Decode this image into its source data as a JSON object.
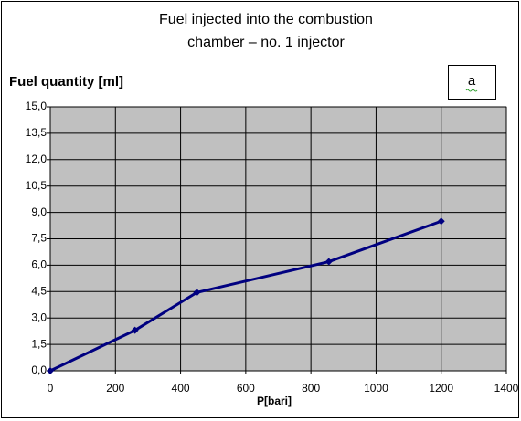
{
  "chart_data": {
    "type": "line",
    "title": [
      "Fuel injected into the combustion",
      "chamber – no. 1 injector"
    ],
    "y_label": "Fuel quantity [ml]",
    "x_label": "P[bari]",
    "annotation": "a",
    "x": [
      0,
      260,
      450,
      855,
      1200
    ],
    "series": [
      {
        "color": "#000080",
        "values": [
          0,
          2.3,
          4.45,
          6.2,
          8.5
        ]
      }
    ],
    "xlim": [
      0,
      1400
    ],
    "xticks": [
      0,
      200,
      400,
      600,
      800,
      1000,
      1200,
      1400
    ],
    "ylim": [
      0,
      15
    ],
    "yticks": [
      {
        "value": 0,
        "label": "0,0"
      },
      {
        "value": 1.5,
        "label": "1,5"
      },
      {
        "value": 3,
        "label": "3,0"
      },
      {
        "value": 4.5,
        "label": "4,5"
      },
      {
        "value": 6,
        "label": "6,0"
      },
      {
        "value": 7.5,
        "label": "7,5"
      },
      {
        "value": 9,
        "label": "9,0"
      },
      {
        "value": 10.5,
        "label": "10,5"
      },
      {
        "value": 12,
        "label": "12,0"
      },
      {
        "value": 13.5,
        "label": "13,5"
      },
      {
        "value": 15,
        "label": "15,0"
      }
    ],
    "grid": true,
    "plot_background": "#c0c0c0"
  }
}
